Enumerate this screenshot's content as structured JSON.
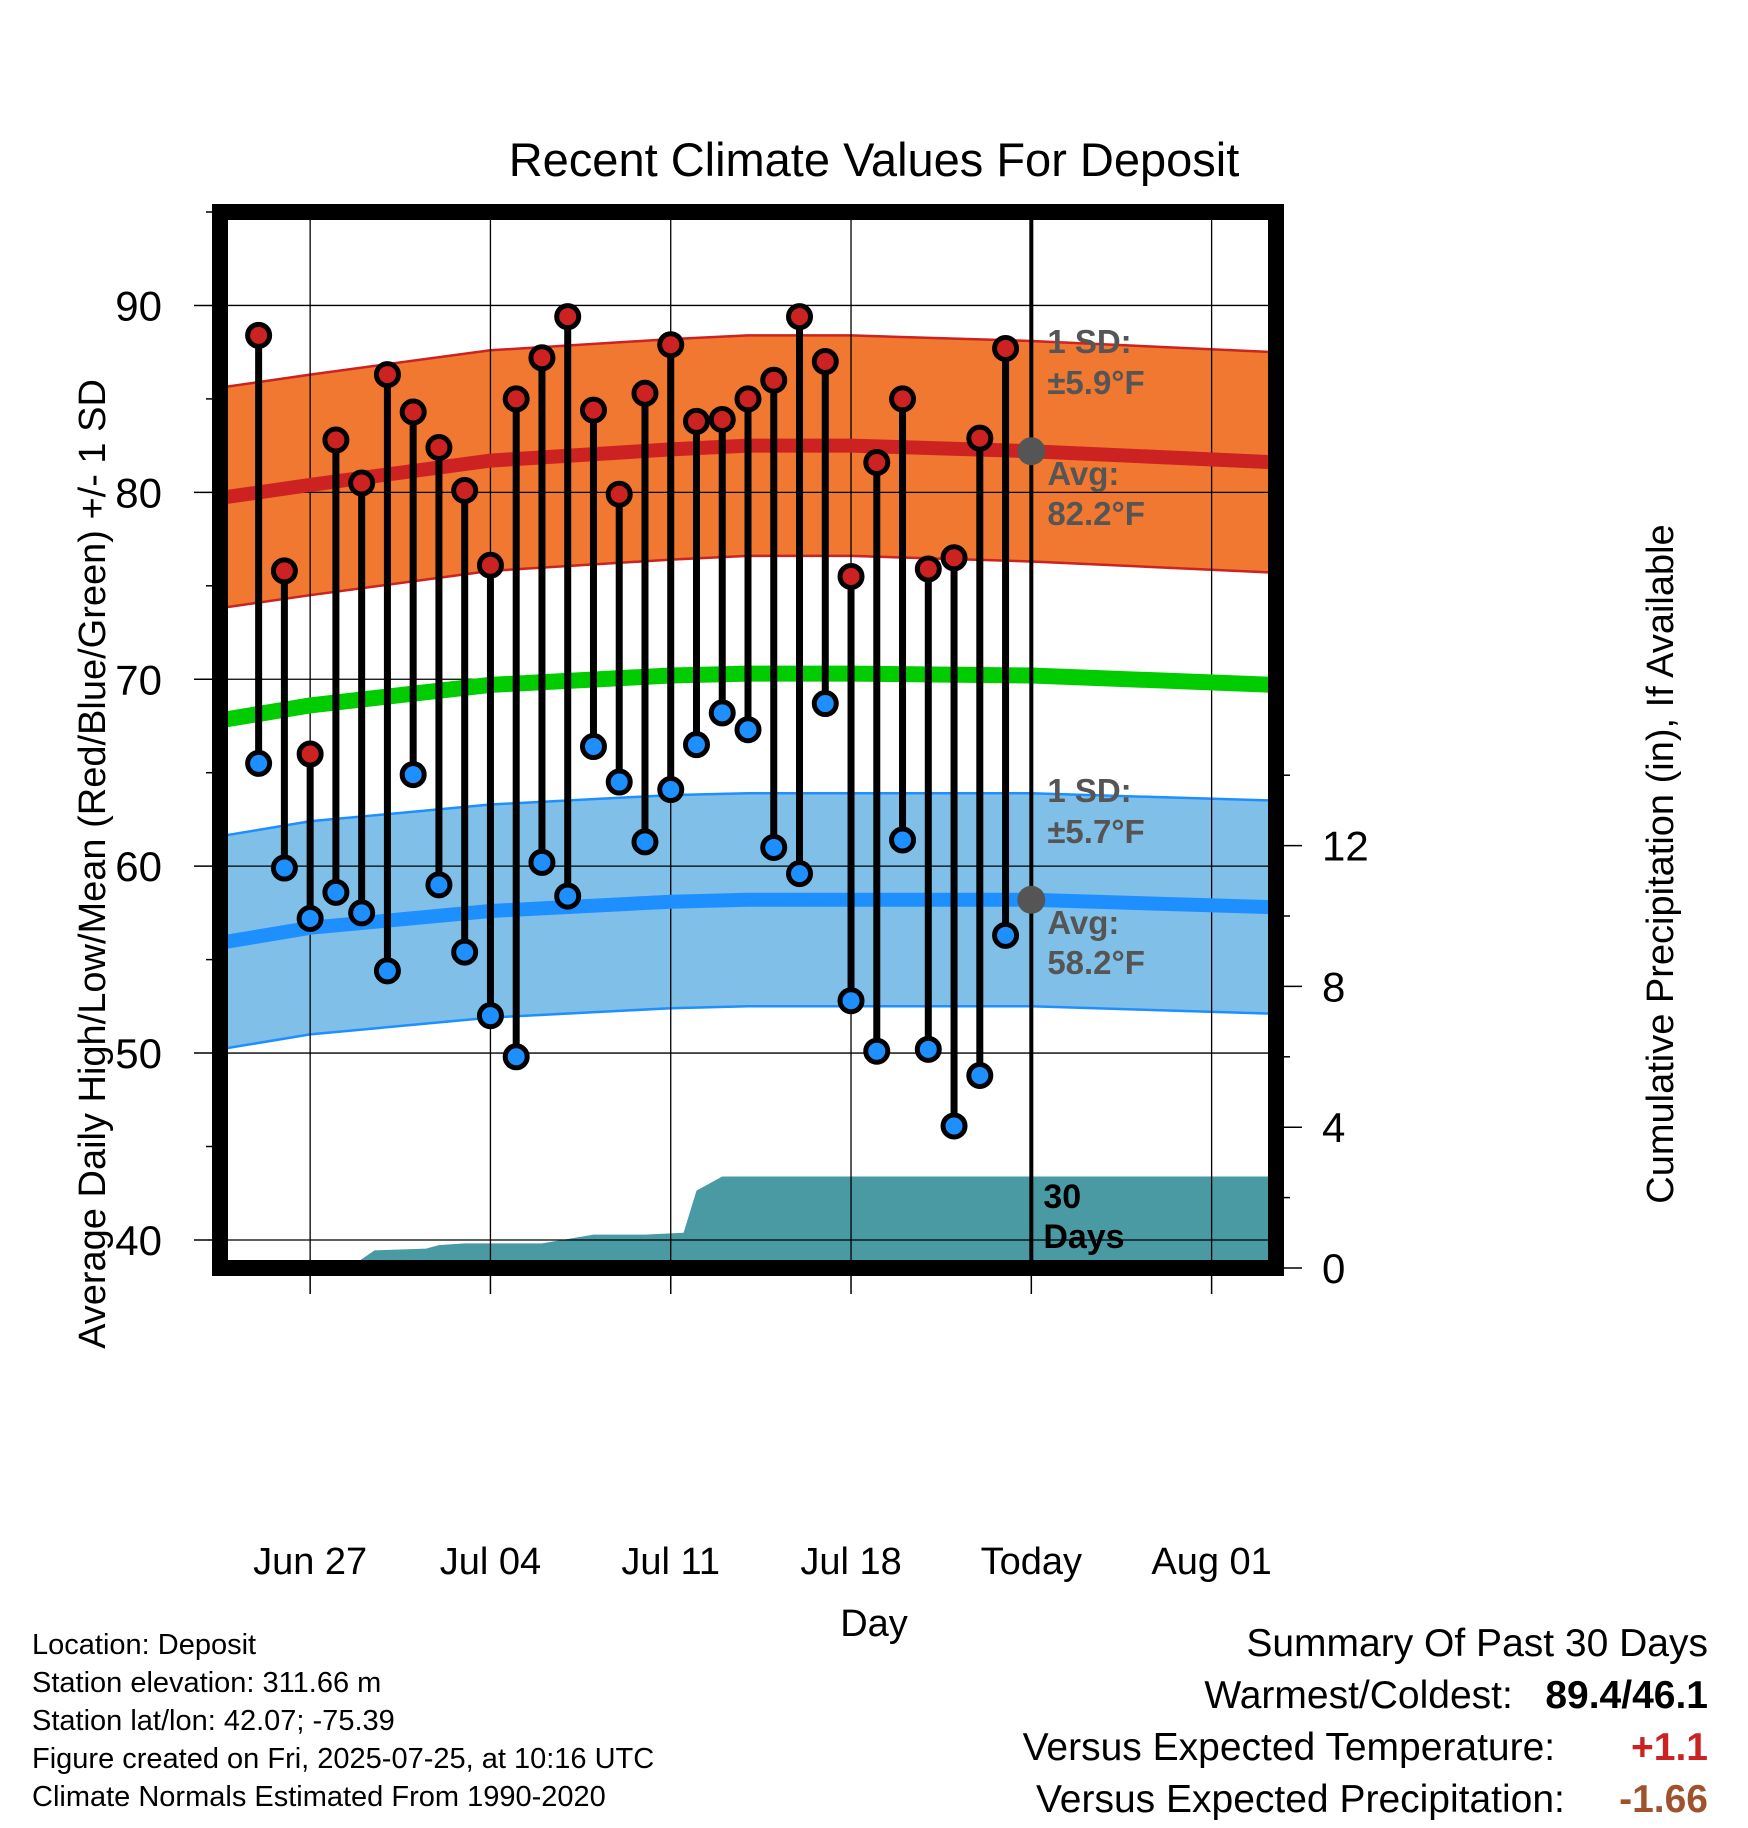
{
  "chart_data": {
    "type": "line",
    "title": "Recent Climate Values For Deposit",
    "xlabel": "Day",
    "ylabel": "Average Daily High/Low/Mean (Red/Blue/Green) +/- 1 SD",
    "y2label": "Cumulative Precipitation (in), If Available",
    "ylim": [
      38.5,
      95
    ],
    "y2lim": [
      0,
      30
    ],
    "xlim": [
      -3.5,
      37.5
    ],
    "x_tick_labels": [
      "Jun 27",
      "Jul 04",
      "Jul 11",
      "Jul 18",
      "Today",
      "Aug 01"
    ],
    "x_tick_positions": [
      0,
      7,
      14,
      21,
      28,
      35
    ],
    "y_ticks": [
      40,
      50,
      60,
      70,
      80,
      90
    ],
    "y2_ticks": [
      0,
      4,
      8,
      12
    ],
    "grid": true,
    "colors": {
      "high": "#cc2222",
      "low": "#1e8fff",
      "mean": "#00cc00",
      "high_band": "#f07830",
      "low_band": "#80c0e8",
      "precip": "#4a9aa4",
      "annotation": "#555555"
    },
    "series": [
      {
        "name": "High",
        "x": [
          -2,
          -1,
          0,
          1,
          2,
          3,
          4,
          5,
          6,
          7,
          8,
          9,
          10,
          11,
          12,
          13,
          14,
          15,
          16,
          17,
          18,
          19,
          20,
          21,
          22,
          23,
          24,
          25,
          26,
          27
        ],
        "values": [
          88.4,
          75.8,
          66.0,
          82.8,
          80.5,
          86.3,
          84.3,
          82.4,
          80.1,
          76.1,
          85.0,
          87.2,
          89.4,
          84.4,
          79.9,
          85.3,
          87.9,
          83.8,
          83.9,
          85.0,
          86.0,
          89.4,
          87.0,
          75.5,
          81.6,
          85.0,
          75.9,
          76.5,
          82.9,
          87.7
        ]
      },
      {
        "name": "Low",
        "x": [
          -2,
          -1,
          0,
          1,
          2,
          3,
          4,
          5,
          6,
          7,
          8,
          9,
          10,
          11,
          12,
          13,
          14,
          15,
          16,
          17,
          18,
          19,
          20,
          21,
          22,
          23,
          24,
          25,
          26,
          27
        ],
        "values": [
          65.5,
          59.9,
          57.2,
          58.6,
          57.5,
          54.4,
          64.9,
          59.0,
          55.4,
          52.0,
          49.8,
          60.2,
          58.4,
          66.4,
          64.5,
          61.3,
          64.1,
          66.5,
          68.2,
          67.3,
          61.0,
          59.6,
          68.7,
          52.8,
          50.1,
          61.4,
          50.2,
          46.1,
          48.8,
          56.3
        ]
      },
      {
        "name": "Avg high",
        "x": [
          -3.5,
          0,
          7,
          14,
          17,
          21,
          28,
          37.5
        ],
        "values": [
          79.7,
          80.4,
          81.7,
          82.3,
          82.5,
          82.5,
          82.2,
          81.6
        ],
        "sd": [
          5.9,
          5.9,
          5.9,
          5.9,
          5.9,
          5.9,
          5.9,
          5.9
        ]
      },
      {
        "name": "Avg low",
        "x": [
          -3.5,
          0,
          7,
          14,
          17,
          21,
          28,
          37.5
        ],
        "values": [
          55.9,
          56.7,
          57.6,
          58.1,
          58.2,
          58.2,
          58.2,
          57.8
        ],
        "sd": [
          5.7,
          5.7,
          5.7,
          5.7,
          5.7,
          5.7,
          5.7,
          5.7
        ]
      },
      {
        "name": "Mean",
        "x": [
          -3.5,
          0,
          7,
          14,
          17,
          21,
          28,
          37.5
        ],
        "values": [
          67.8,
          68.6,
          69.7,
          70.2,
          70.3,
          70.3,
          70.2,
          69.7
        ]
      },
      {
        "name": "Precipitation",
        "x": [
          -3.5,
          1.5,
          2.5,
          4.5,
          5,
          6,
          9,
          11,
          13,
          14.5,
          15,
          16,
          17,
          28,
          37.5
        ],
        "values": [
          0,
          0,
          0.5,
          0.55,
          0.65,
          0.7,
          0.7,
          0.95,
          0.95,
          1.0,
          2.2,
          2.6,
          2.6,
          2.6,
          2.6
        ]
      }
    ],
    "annotations": {
      "high_sd_label": "1 SD:",
      "high_sd_value": "±5.9°F",
      "high_avg_label": "Avg:",
      "high_avg_value": "82.2°F",
      "low_sd_label": "1 SD:",
      "low_sd_value": "±5.7°F",
      "low_avg_label": "Avg:",
      "low_avg_value": "58.2°F",
      "days_line1": "30",
      "days_line2": "Days"
    }
  },
  "metadata": {
    "location": "Location: Deposit",
    "elevation": "Station elevation: 311.66 m",
    "latlon": "Station lat/lon: 42.07; -75.39",
    "created": "Figure created on Fri, 2025-07-25, at 10:16 UTC",
    "normals": "Climate Normals Estimated From 1990-2020"
  },
  "summary": {
    "title": "Summary Of Past 30 Days",
    "warmest_label": "Warmest/Coldest:",
    "warmest_value": "89.4/46.1",
    "temp_label": "Versus Expected Temperature:",
    "temp_value": "+1.1",
    "temp_color": "#cc2222",
    "precip_label": "Versus Expected Precipitation:",
    "precip_value": "-1.66",
    "precip_color": "#a0522d"
  }
}
